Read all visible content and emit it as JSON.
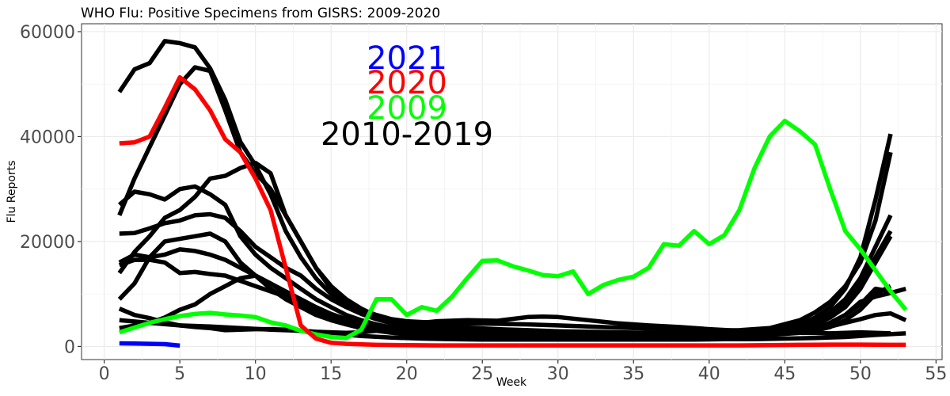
{
  "chart_data": {
    "type": "line",
    "title": "WHO Flu: Positive Specimens from GISRS: 2009-2020",
    "xlabel": "Week",
    "ylabel": "Flu Reports",
    "xlim": [
      -1.5,
      55.4
    ],
    "ylim": [
      -2500,
      61500
    ],
    "x_ticks": [
      0,
      5,
      10,
      15,
      20,
      25,
      30,
      35,
      40,
      45,
      50,
      55
    ],
    "y_ticks": [
      0,
      20000,
      40000,
      60000
    ],
    "x_tick_labels": [
      "0",
      "5",
      "10",
      "15",
      "20",
      "25",
      "30",
      "35",
      "40",
      "45",
      "50",
      "55"
    ],
    "y_tick_labels": [
      "0",
      "20000",
      "40000",
      "60000"
    ],
    "grid": true,
    "legend": [
      {
        "label": "2021",
        "color": "#0000ff"
      },
      {
        "label": "2020",
        "color": "#ff0000"
      },
      {
        "label": "2009",
        "color": "#00ff00"
      },
      {
        "label": "2010-2019",
        "color": "#000000"
      }
    ],
    "series": [
      {
        "name": "2010-2019 A",
        "color": "#000000",
        "x": [
          1,
          2,
          3,
          4,
          5,
          6,
          7,
          8,
          9,
          10,
          11,
          12,
          13,
          14,
          15,
          16,
          17,
          18,
          19,
          20,
          22,
          24,
          26,
          28,
          30,
          32,
          34,
          36,
          38,
          40,
          42,
          44,
          46,
          47,
          48,
          49,
          50,
          51,
          52
        ],
        "values": [
          48500,
          52800,
          54000,
          58200,
          57800,
          57000,
          53000,
          47000,
          39000,
          34500,
          29000,
          22000,
          17000,
          13000,
          10000,
          8000,
          7000,
          6000,
          5200,
          4800,
          4500,
          4400,
          4300,
          4200,
          4000,
          3800,
          3600,
          3400,
          3200,
          3000,
          3100,
          3500,
          5000,
          6500,
          8500,
          11500,
          16000,
          24000,
          37000
        ]
      },
      {
        "name": "2010-2019 B",
        "color": "#000000",
        "x": [
          1,
          2,
          3,
          4,
          5,
          6,
          7,
          8,
          9,
          10,
          11,
          12,
          13,
          14,
          15,
          16,
          17,
          18,
          19,
          20,
          22,
          24,
          26,
          28,
          30,
          32,
          34,
          36,
          38,
          40,
          42,
          44,
          46,
          47,
          48,
          49,
          50,
          51,
          52
        ],
        "values": [
          25000,
          32000,
          38000,
          44000,
          50000,
          53200,
          52500,
          45000,
          37000,
          33000,
          30000,
          25000,
          20000,
          15000,
          11000,
          8500,
          6800,
          5500,
          4500,
          4000,
          3500,
          3200,
          3000,
          2900,
          2800,
          2700,
          2600,
          2500,
          2500,
          2600,
          2800,
          3200,
          4200,
          5500,
          7500,
          11000,
          17000,
          28000,
          40500
        ]
      },
      {
        "name": "2010-2019 C",
        "color": "#000000",
        "x": [
          1,
          2,
          3,
          4,
          5,
          6,
          7,
          8,
          9,
          10,
          11,
          12,
          13,
          14,
          15,
          16,
          17,
          18,
          19,
          20,
          22,
          24,
          26,
          28,
          30,
          32,
          34,
          36,
          38,
          40,
          42,
          44,
          46,
          47,
          48,
          49,
          50,
          51,
          52
        ],
        "values": [
          14000,
          18000,
          21000,
          24500,
          26000,
          28500,
          32000,
          32500,
          34000,
          35000,
          33000,
          25000,
          20000,
          15000,
          11500,
          9000,
          7200,
          5800,
          5000,
          4500,
          4000,
          3600,
          3300,
          3100,
          2900,
          2800,
          2700,
          2600,
          2500,
          2600,
          2700,
          3000,
          4000,
          5000,
          6500,
          9000,
          13000,
          19000,
          25000
        ]
      },
      {
        "name": "2010-2019 D",
        "color": "#000000",
        "x": [
          1,
          2,
          3,
          4,
          5,
          6,
          7,
          8,
          9,
          10,
          11,
          12,
          13,
          14,
          15,
          16,
          17,
          18,
          19,
          20,
          22,
          24,
          26,
          28,
          30,
          32,
          34,
          36,
          38,
          40,
          42,
          44,
          46,
          47,
          48,
          49,
          50,
          51,
          52
        ],
        "values": [
          27000,
          29500,
          29000,
          28000,
          30000,
          30500,
          29000,
          27000,
          21000,
          17500,
          15000,
          13000,
          11000,
          9000,
          7500,
          6000,
          5000,
          4200,
          3600,
          3200,
          2800,
          2600,
          2500,
          2400,
          2400,
          2300,
          2300,
          2300,
          2400,
          2500,
          2700,
          3000,
          3800,
          4800,
          6000,
          8000,
          12000,
          17000,
          22000
        ]
      },
      {
        "name": "2010-2019 E",
        "color": "#000000",
        "x": [
          1,
          2,
          3,
          4,
          5,
          6,
          7,
          8,
          9,
          10,
          11,
          12,
          13,
          14,
          15,
          16,
          17,
          18,
          19,
          20,
          22,
          24,
          26,
          28,
          30,
          32,
          34,
          36,
          38,
          40,
          42,
          44,
          46,
          47,
          48,
          49,
          50,
          51,
          52
        ],
        "values": [
          21500,
          21600,
          22500,
          23500,
          24000,
          25000,
          25200,
          24500,
          22000,
          19000,
          17000,
          15000,
          13500,
          11000,
          9000,
          7500,
          6200,
          5200,
          4400,
          3800,
          3300,
          3000,
          2800,
          2600,
          2500,
          2400,
          2400,
          2300,
          2300,
          2400,
          2500,
          2800,
          3500,
          4200,
          5500,
          7500,
          11000,
          16000,
          21000
        ]
      },
      {
        "name": "2010-2019 F",
        "color": "#000000",
        "x": [
          1,
          2,
          3,
          4,
          5,
          6,
          7,
          8,
          9,
          10,
          11,
          12,
          13,
          14,
          15,
          16,
          17,
          18,
          19,
          20,
          22,
          24,
          26,
          28,
          30,
          32,
          34,
          36,
          38,
          40,
          42,
          44,
          46,
          47,
          48,
          49,
          50,
          51,
          52
        ],
        "values": [
          16000,
          17500,
          17000,
          17500,
          18500,
          18200,
          17500,
          16500,
          15000,
          13500,
          12000,
          10500,
          9000,
          7500,
          6200,
          5200,
          4400,
          3800,
          3300,
          2900,
          2500,
          2300,
          2200,
          2100,
          2000,
          2000,
          2000,
          2000,
          2000,
          2100,
          2200,
          2500,
          3000,
          3500,
          4500,
          6000,
          8000,
          11000,
          10500
        ]
      },
      {
        "name": "2010-2019 G",
        "color": "#000000",
        "x": [
          1,
          2,
          3,
          4,
          5,
          6,
          7,
          8,
          9,
          10,
          11,
          12,
          13,
          14,
          15,
          16,
          17,
          18,
          19,
          20,
          22,
          24,
          26,
          28,
          30,
          32,
          34,
          36,
          38,
          40,
          42,
          44,
          46,
          47,
          48,
          49,
          50,
          51,
          52
        ],
        "values": [
          9000,
          12000,
          17000,
          20000,
          20500,
          21000,
          21500,
          20000,
          16000,
          13500,
          11000,
          9000,
          7500,
          6000,
          5000,
          4200,
          3500,
          3000,
          2600,
          2300,
          2100,
          2000,
          1900,
          1900,
          1800,
          1800,
          1800,
          1800,
          1800,
          1900,
          2000,
          2200,
          2600,
          3000,
          3700,
          5000,
          7000,
          10000,
          11500
        ]
      },
      {
        "name": "2010-2019 H",
        "color": "#000000",
        "x": [
          1,
          2,
          3,
          4,
          5,
          6,
          7,
          8,
          9,
          10,
          11,
          12,
          13,
          14,
          15,
          16,
          17,
          18,
          19,
          20,
          22,
          24,
          26,
          28,
          30,
          32,
          34,
          36,
          38,
          40,
          42,
          44,
          46,
          47,
          48,
          49,
          50,
          51,
          52,
          53
        ],
        "values": [
          15500,
          16500,
          16500,
          16000,
          14000,
          14200,
          13800,
          13500,
          12500,
          11500,
          10500,
          9500,
          8200,
          7000,
          5800,
          4900,
          4200,
          3600,
          3200,
          2900,
          2600,
          2400,
          2300,
          2200,
          2100,
          2100,
          2100,
          2100,
          2100,
          2200,
          2300,
          2500,
          2800,
          3200,
          3800,
          4500,
          5200,
          6000,
          6300,
          5000
        ]
      },
      {
        "name": "2010-2019 I",
        "color": "#000000",
        "x": [
          1,
          2,
          3,
          4,
          5,
          6,
          7,
          8,
          9,
          10,
          11,
          12,
          13,
          14,
          15,
          16,
          17,
          18,
          19,
          20,
          22,
          24,
          26,
          28,
          30,
          32,
          34,
          36,
          38,
          40,
          42,
          44,
          46,
          47,
          48,
          49,
          50,
          51,
          52,
          53
        ],
        "values": [
          3500,
          4000,
          4500,
          5500,
          7000,
          8000,
          10000,
          11500,
          13000,
          13500,
          12000,
          10000,
          8000,
          6500,
          5200,
          4300,
          3600,
          3100,
          2700,
          2400,
          2100,
          2000,
          1900,
          1800,
          1800,
          1800,
          1800,
          1800,
          1800,
          1900,
          2000,
          2300,
          2800,
          3500,
          4500,
          6000,
          8500,
          9500,
          10200,
          11000
        ]
      },
      {
        "name": "2010-2019 J",
        "color": "#000000",
        "x": [
          1,
          2,
          3,
          4,
          5,
          6,
          7,
          8,
          9,
          10,
          11,
          12,
          13,
          14,
          15,
          16,
          17,
          18,
          19,
          20,
          22,
          24,
          26,
          28,
          29,
          30,
          32,
          34,
          36,
          38,
          40,
          42,
          44,
          46,
          48,
          50,
          52
        ],
        "values": [
          7200,
          6000,
          5400,
          4600,
          4000,
          3700,
          3500,
          3100,
          3200,
          3300,
          3300,
          3200,
          3000,
          2800,
          2700,
          2600,
          2700,
          3000,
          3500,
          4200,
          4800,
          5000,
          4900,
          5600,
          5700,
          5600,
          5000,
          4400,
          4000,
          3700,
          3300,
          3000,
          2800,
          2600,
          2500,
          2700,
          2500
        ]
      },
      {
        "name": "2010-2019 K",
        "color": "#000000",
        "x": [
          1,
          3,
          5,
          7,
          9,
          11,
          13,
          15,
          17,
          19,
          21,
          23,
          25,
          27,
          29,
          31,
          33,
          35,
          37,
          39,
          41,
          43,
          45,
          47,
          49,
          51,
          53
        ],
        "values": [
          5000,
          4500,
          4000,
          3800,
          3500,
          3200,
          3000,
          2500,
          2000,
          1700,
          1500,
          1400,
          1300,
          1300,
          1300,
          1300,
          1300,
          1300,
          1300,
          1300,
          1400,
          1400,
          1500,
          1600,
          1800,
          2200,
          2500
        ]
      },
      {
        "name": "2009",
        "color": "#00ff00",
        "x": [
          1,
          2,
          3,
          4,
          5,
          6,
          7,
          8,
          9,
          10,
          11,
          12,
          13,
          14,
          15,
          16,
          17,
          18,
          19,
          20,
          21,
          22,
          23,
          24,
          25,
          26,
          27,
          28,
          29,
          30,
          31,
          32,
          33,
          34,
          35,
          36,
          37,
          38,
          39,
          40,
          41,
          42,
          43,
          44,
          45,
          46,
          47,
          48,
          49,
          50,
          51,
          52,
          53
        ],
        "values": [
          2700,
          3600,
          4500,
          5200,
          5800,
          6200,
          6400,
          6100,
          5900,
          5600,
          4600,
          4000,
          3000,
          2300,
          1800,
          1600,
          3200,
          9000,
          9000,
          6000,
          7500,
          6800,
          9500,
          13000,
          16300,
          16400,
          15300,
          14500,
          13600,
          13400,
          14300,
          10000,
          11700,
          12700,
          13300,
          15000,
          19500,
          19200,
          22000,
          19500,
          21200,
          26000,
          34000,
          40000,
          43000,
          41000,
          38500,
          30000,
          22000,
          18500,
          14500,
          10500,
          7000
        ]
      },
      {
        "name": "2020",
        "color": "#ff0000",
        "x": [
          1,
          2,
          3,
          4,
          5,
          6,
          7,
          8,
          9,
          10,
          11,
          12,
          13,
          14,
          15,
          16,
          17,
          18,
          20,
          22,
          24,
          26,
          28,
          30,
          32,
          34,
          36,
          38,
          40,
          42,
          44,
          46,
          48,
          50,
          52,
          53
        ],
        "values": [
          38700,
          38900,
          40000,
          45500,
          51300,
          49000,
          45000,
          39500,
          37000,
          32000,
          26000,
          15000,
          4000,
          1500,
          700,
          500,
          400,
          300,
          250,
          200,
          200,
          200,
          200,
          200,
          200,
          200,
          200,
          200,
          200,
          200,
          250,
          300,
          350,
          350,
          300,
          300
        ]
      },
      {
        "name": "2021",
        "color": "#0000ff",
        "x": [
          1,
          2,
          3,
          4,
          5
        ],
        "values": [
          600,
          550,
          500,
          450,
          150
        ]
      }
    ]
  }
}
